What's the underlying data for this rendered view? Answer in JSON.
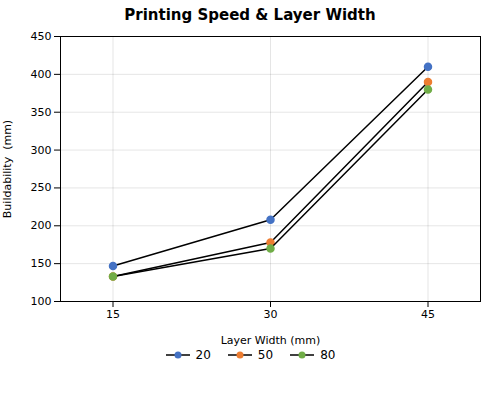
{
  "chart_data": {
    "type": "line",
    "title": "Printing Speed & Layer Width",
    "xlabel": "Layer Width (mm)",
    "ylabel": "Buildability  (mm)",
    "x": [
      15,
      30,
      45
    ],
    "series": [
      {
        "name": "20",
        "color": "#4472C4",
        "marker": "circle",
        "values": [
          147,
          208,
          410
        ]
      },
      {
        "name": "50",
        "color": "#ED7D31",
        "marker": "circle",
        "values": [
          133,
          178,
          390
        ]
      },
      {
        "name": "80",
        "color": "#70AD47",
        "marker": "circle",
        "values": [
          133,
          170,
          380
        ]
      }
    ],
    "color": "#000000",
    "xlim": [
      10,
      50
    ],
    "xticks": [
      15,
      30,
      45
    ],
    "ylim": [
      100,
      450
    ],
    "yticks": [
      100,
      150,
      200,
      250,
      300,
      350,
      400,
      450
    ],
    "grid": true,
    "legend": "bottom"
  }
}
